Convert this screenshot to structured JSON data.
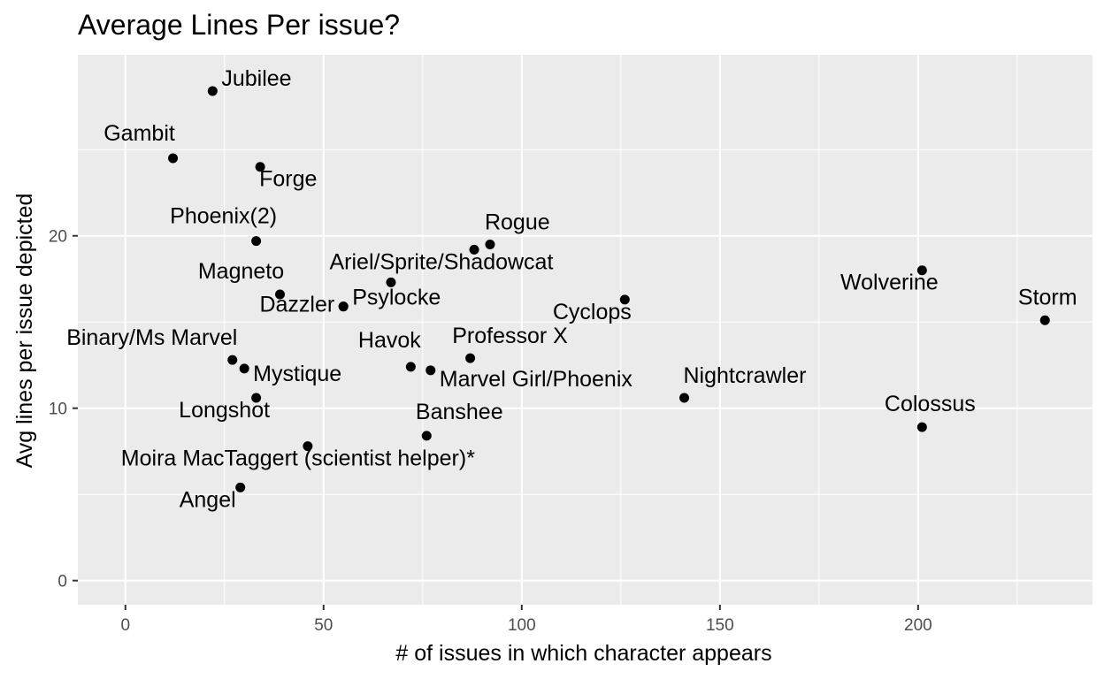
{
  "chart_data": {
    "type": "scatter",
    "title": "Average Lines Per issue?",
    "xlabel": "# of issues in which character appears",
    "ylabel": "Avg lines per issue depicted",
    "xlim": [
      -12,
      244
    ],
    "ylim": [
      -1.4,
      30.5
    ],
    "x_ticks": [
      0,
      50,
      100,
      150,
      200
    ],
    "x_tick_labels": [
      "0",
      "50",
      "100",
      "150",
      "200"
    ],
    "y_ticks": [
      0,
      10,
      20
    ],
    "y_tick_labels": [
      "0",
      "10",
      "20"
    ],
    "grid": true,
    "background": "#ebebeb",
    "grid_color": "#ffffff",
    "point_color": "#000000",
    "points": [
      {
        "name": "Jubilee",
        "x": 22,
        "y": 28.4,
        "anchor": "start",
        "dx": 10,
        "dy": -6
      },
      {
        "name": "Gambit",
        "x": 12,
        "y": 24.5,
        "anchor": "middle",
        "dx": -38,
        "dy": -20
      },
      {
        "name": "Forge",
        "x": 34,
        "y": 24.0,
        "anchor": "start",
        "dx": -1,
        "dy": 22
      },
      {
        "name": "Phoenix(2)",
        "x": 33,
        "y": 19.7,
        "anchor": "middle",
        "dx": -37,
        "dy": -20
      },
      {
        "name": "Rogue",
        "x": 92,
        "y": 19.5,
        "anchor": "start",
        "dx": -6,
        "dy": -17
      },
      {
        "name": "",
        "x": 88,
        "y": 19.2,
        "anchor": "start",
        "dx": 0,
        "dy": 0
      },
      {
        "name": "Ariel/Sprite/Shadowcat",
        "x": 67,
        "y": 17.3,
        "anchor": "middle",
        "dx": 57,
        "dy": -15
      },
      {
        "name": "Wolverine",
        "x": 201,
        "y": 18.0,
        "anchor": "middle",
        "dx": -37,
        "dy": 22
      },
      {
        "name": "Magneto",
        "x": 39,
        "y": 16.6,
        "anchor": "middle",
        "dx": -44,
        "dy": -18
      },
      {
        "name": "Psylocke",
        "x": 55,
        "y": 15.9,
        "anchor": "start",
        "dx": 10,
        "dy": -2
      },
      {
        "name": "Dazzler",
        "x": 55,
        "y": 15.9,
        "anchor": "end",
        "dx": -10,
        "dy": 6
      },
      {
        "name": "Cyclops",
        "x": 126,
        "y": 16.3,
        "anchor": "middle",
        "dx": -37,
        "dy": 22
      },
      {
        "name": "Storm",
        "x": 232,
        "y": 15.1,
        "anchor": "middle",
        "dx": 3,
        "dy": -18
      },
      {
        "name": "Binary/Ms Marvel",
        "x": 27,
        "y": 12.8,
        "anchor": "middle",
        "dx": -91,
        "dy": -17
      },
      {
        "name": "Professor X",
        "x": 87,
        "y": 12.9,
        "anchor": "middle",
        "dx": 45,
        "dy": -17
      },
      {
        "name": "Havok",
        "x": 72,
        "y": 12.4,
        "anchor": "middle",
        "dx": -24,
        "dy": -22
      },
      {
        "name": "Marvel Girl/Phoenix",
        "x": 77,
        "y": 12.2,
        "anchor": "start",
        "dx": 10,
        "dy": 18
      },
      {
        "name": "Mystique",
        "x": 30,
        "y": 12.3,
        "anchor": "start",
        "dx": 10,
        "dy": 14
      },
      {
        "name": "Longshot",
        "x": 33,
        "y": 10.6,
        "anchor": "middle",
        "dx": -36,
        "dy": 22
      },
      {
        "name": "Nightcrawler",
        "x": 141,
        "y": 10.6,
        "anchor": "start",
        "dx": -1,
        "dy": -17
      },
      {
        "name": "Colossus",
        "x": 201,
        "y": 8.9,
        "anchor": "middle",
        "dx": 9,
        "dy": -18
      },
      {
        "name": "Banshee",
        "x": 76,
        "y": 8.4,
        "anchor": "middle",
        "dx": 37,
        "dy": -19
      },
      {
        "name": "Moira MacTaggert (scientist helper)*",
        "x": 46,
        "y": 7.8,
        "anchor": "middle",
        "dx": -11,
        "dy": 22
      },
      {
        "name": "Angel",
        "x": 29,
        "y": 5.4,
        "anchor": "middle",
        "dx": -37,
        "dy": 22
      }
    ]
  }
}
